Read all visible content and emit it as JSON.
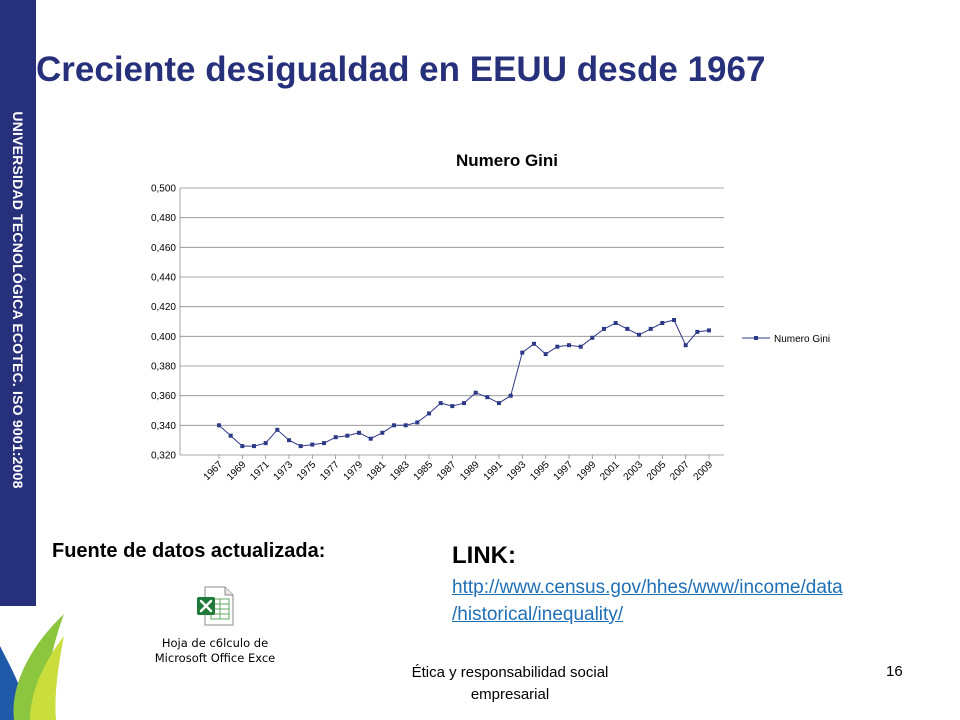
{
  "sidebar": {
    "text": "UNIVERSIDAD TECNOLÓGICA ECOTEC. ISO 9001:2008"
  },
  "slide": {
    "title": "Creciente desigualdad en EEUU desde 1967",
    "source_label": "Fuente de datos actualizada:",
    "link_title": "LINK:",
    "link_url": "http://www.census.gov/hhes/www/income/data/historical/inequality/",
    "link_url_line1": "http://www.census.gov/hhes/www/income/data",
    "link_url_line2": "/historical/inequality/",
    "excel_label_line1": "Hoja de c6lculo de",
    "excel_label_line2": "Microsoft Office Exce",
    "footer_line1": "Ética y responsabilidad social",
    "footer_line2": "empresarial",
    "page_number": "16"
  },
  "colors": {
    "sidebar": "#27307a",
    "title": "#27307a",
    "series": "#2e3a87",
    "link": "#1f6fb5"
  },
  "chart_data": {
    "type": "line",
    "title": "Numero Gini",
    "x": [
      1967,
      1968,
      1969,
      1970,
      1971,
      1972,
      1973,
      1974,
      1975,
      1976,
      1977,
      1978,
      1979,
      1980,
      1981,
      1982,
      1983,
      1984,
      1985,
      1986,
      1987,
      1988,
      1989,
      1990,
      1991,
      1992,
      1993,
      1994,
      1995,
      1996,
      1997,
      1998,
      1999,
      2000,
      2001,
      2002,
      2003,
      2004,
      2005,
      2006,
      2007,
      2008,
      2009
    ],
    "x_tick_labels": [
      "1967",
      "1969",
      "1971",
      "1973",
      "1975",
      "1977",
      "1979",
      "1981",
      "1983",
      "1985",
      "1987",
      "1989",
      "1991",
      "1993",
      "1995",
      "1997",
      "1999",
      "2001",
      "2003",
      "2005",
      "2007",
      "2009"
    ],
    "series": [
      {
        "name": "Numero Gini",
        "values": [
          0.34,
          0.333,
          0.326,
          0.326,
          0.328,
          0.337,
          0.33,
          0.326,
          0.327,
          0.328,
          0.332,
          0.333,
          0.335,
          0.331,
          0.335,
          0.34,
          0.34,
          0.342,
          0.348,
          0.355,
          0.353,
          0.355,
          0.362,
          0.359,
          0.355,
          0.36,
          0.389,
          0.395,
          0.388,
          0.393,
          0.394,
          0.393,
          0.399,
          0.405,
          0.409,
          0.405,
          0.401,
          0.405,
          0.409,
          0.411,
          0.394,
          0.403,
          0.404
        ]
      }
    ],
    "y_tick_labels": [
      "0,320",
      "0,340",
      "0,360",
      "0,380",
      "0,400",
      "0,420",
      "0,440",
      "0,460",
      "0,480",
      "0,500"
    ],
    "ylim": [
      0.32,
      0.5
    ],
    "grid": true,
    "legend": "right"
  }
}
